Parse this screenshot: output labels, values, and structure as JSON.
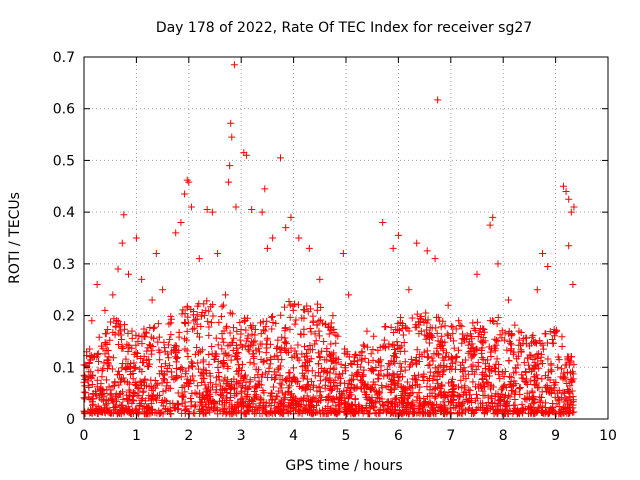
{
  "chart_data": {
    "type": "scatter",
    "title": "Day 178 of 2022, Rate Of TEC Index for receiver sg27",
    "xlabel": "GPS time / hours",
    "ylabel": "ROTI / TECUs",
    "xlim": [
      0,
      10
    ],
    "ylim": [
      0,
      0.7
    ],
    "xticks": [
      "0",
      "1",
      "2",
      "3",
      "4",
      "5",
      "6",
      "7",
      "8",
      "9",
      "10"
    ],
    "yticks": [
      "0",
      "0.1",
      "0.2",
      "0.3",
      "0.4",
      "0.5",
      "0.6",
      "0.7"
    ],
    "grid": true,
    "marker": "+",
    "color": "#ff0000",
    "series": [
      {
        "name": "ROTI",
        "points": [
          [
            0.05,
            0.13
          ],
          [
            0.15,
            0.19
          ],
          [
            0.25,
            0.26
          ],
          [
            0.4,
            0.21
          ],
          [
            0.55,
            0.24
          ],
          [
            0.65,
            0.29
          ],
          [
            0.73,
            0.34
          ],
          [
            0.76,
            0.395
          ],
          [
            0.85,
            0.28
          ],
          [
            1.0,
            0.35
          ],
          [
            1.1,
            0.27
          ],
          [
            1.3,
            0.23
          ],
          [
            1.38,
            0.32
          ],
          [
            1.5,
            0.25
          ],
          [
            1.75,
            0.36
          ],
          [
            1.85,
            0.38
          ],
          [
            1.92,
            0.435
          ],
          [
            1.97,
            0.462
          ],
          [
            2.0,
            0.458
          ],
          [
            2.05,
            0.41
          ],
          [
            2.2,
            0.31
          ],
          [
            2.35,
            0.405
          ],
          [
            2.45,
            0.4
          ],
          [
            2.55,
            0.32
          ],
          [
            2.7,
            0.24
          ],
          [
            2.76,
            0.458
          ],
          [
            2.78,
            0.49
          ],
          [
            2.8,
            0.572
          ],
          [
            2.82,
            0.545
          ],
          [
            2.87,
            0.685
          ],
          [
            2.9,
            0.41
          ],
          [
            3.05,
            0.515
          ],
          [
            3.1,
            0.51
          ],
          [
            3.2,
            0.405
          ],
          [
            3.4,
            0.4
          ],
          [
            3.45,
            0.445
          ],
          [
            3.5,
            0.33
          ],
          [
            3.6,
            0.35
          ],
          [
            3.75,
            0.505
          ],
          [
            3.85,
            0.37
          ],
          [
            3.95,
            0.39
          ],
          [
            4.1,
            0.35
          ],
          [
            4.3,
            0.33
          ],
          [
            4.5,
            0.27
          ],
          [
            4.75,
            0.2
          ],
          [
            4.95,
            0.32
          ],
          [
            5.05,
            0.24
          ],
          [
            5.4,
            0.17
          ],
          [
            5.7,
            0.38
          ],
          [
            5.9,
            0.33
          ],
          [
            6.0,
            0.355
          ],
          [
            6.2,
            0.25
          ],
          [
            6.35,
            0.34
          ],
          [
            6.55,
            0.325
          ],
          [
            6.7,
            0.31
          ],
          [
            6.75,
            0.617
          ],
          [
            6.95,
            0.22
          ],
          [
            7.15,
            0.19
          ],
          [
            7.5,
            0.28
          ],
          [
            7.75,
            0.375
          ],
          [
            7.8,
            0.39
          ],
          [
            7.9,
            0.3
          ],
          [
            8.1,
            0.23
          ],
          [
            8.3,
            0.17
          ],
          [
            8.65,
            0.25
          ],
          [
            8.75,
            0.32
          ],
          [
            8.85,
            0.295
          ],
          [
            9.15,
            0.45
          ],
          [
            9.2,
            0.44
          ],
          [
            9.25,
            0.425
          ],
          [
            9.3,
            0.4
          ],
          [
            9.35,
            0.41
          ],
          [
            9.25,
            0.335
          ],
          [
            9.33,
            0.26
          ]
        ],
        "dense_band": {
          "description": "Bulk of the readings between about 0.01 and 0.2 TECU across 0 to 9.35 h",
          "x_range": [
            0,
            9.35
          ],
          "envelope": [
            [
              0.0,
              0.12
            ],
            [
              0.5,
              0.2
            ],
            [
              1.0,
              0.17
            ],
            [
              1.5,
              0.19
            ],
            [
              2.0,
              0.22
            ],
            [
              2.5,
              0.24
            ],
            [
              3.0,
              0.2
            ],
            [
              3.5,
              0.19
            ],
            [
              4.0,
              0.24
            ],
            [
              4.5,
              0.23
            ],
            [
              5.0,
              0.13
            ],
            [
              5.5,
              0.16
            ],
            [
              6.0,
              0.2
            ],
            [
              6.5,
              0.22
            ],
            [
              7.0,
              0.18
            ],
            [
              7.5,
              0.19
            ],
            [
              8.0,
              0.2
            ],
            [
              8.5,
              0.16
            ],
            [
              9.0,
              0.18
            ],
            [
              9.35,
              0.12
            ]
          ],
          "floor": 0.01
        }
      }
    ]
  }
}
